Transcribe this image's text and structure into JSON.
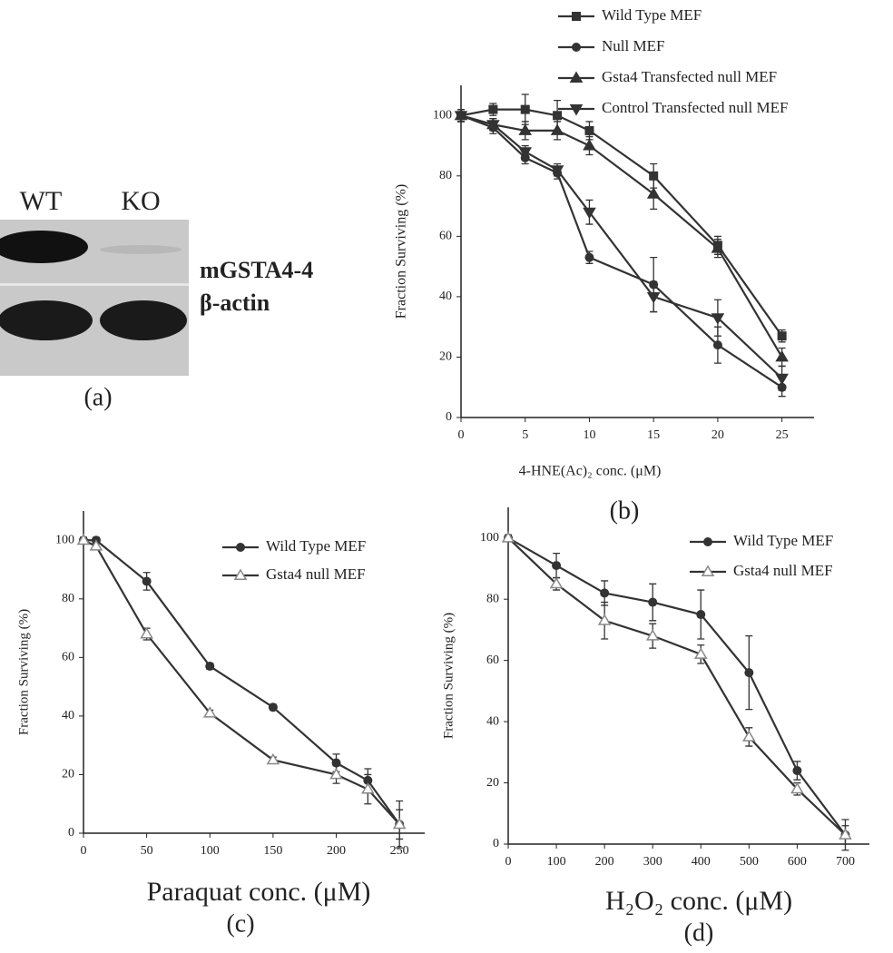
{
  "blot": {
    "lanes": [
      "WT",
      "KO"
    ],
    "bands": [
      "mGSTA4-4",
      "β-actin"
    ],
    "panel": "(a)"
  },
  "chart_data": [
    {
      "type": "line",
      "panel": "(b)",
      "xlabel": "4-HNE(Ac)₂ conc. (μM)",
      "ylabel": "Fraction Surviving (%)",
      "x": [
        0,
        2.5,
        5,
        7.5,
        10,
        15,
        20,
        25
      ],
      "xlim": [
        0,
        27.5
      ],
      "xticks": [
        0,
        5,
        10,
        15,
        20,
        25
      ],
      "ylim": [
        0,
        110
      ],
      "yticks": [
        0,
        20,
        40,
        60,
        80,
        100
      ],
      "series": [
        {
          "name": "Wild Type MEF",
          "color": "#333333",
          "marker": "square",
          "values": [
            100,
            102,
            102,
            100,
            95,
            80,
            57,
            27
          ],
          "errors": [
            2,
            2,
            5,
            5,
            3,
            4,
            3,
            2
          ]
        },
        {
          "name": "Null MEF",
          "color": "#333333",
          "marker": "circle",
          "values": [
            100,
            96,
            86,
            81,
            53,
            44,
            24,
            10
          ],
          "errors": [
            2,
            2,
            2,
            2,
            2,
            9,
            6,
            3
          ]
        },
        {
          "name": "Gsta4 Transfected null MEF",
          "color": "#333333",
          "marker": "triangle",
          "values": [
            100,
            97,
            95,
            95,
            90,
            74,
            56,
            20
          ],
          "errors": [
            2,
            2,
            3,
            3,
            3,
            5,
            3,
            3
          ]
        },
        {
          "name": "Control Transfected null MEF",
          "color": "#333333",
          "marker": "triangle-down",
          "values": [
            100,
            97,
            88,
            82,
            68,
            40,
            33,
            13
          ],
          "errors": [
            2,
            2,
            2,
            2,
            4,
            5,
            6,
            4
          ]
        }
      ]
    },
    {
      "type": "line",
      "panel": "(c)",
      "xlabel": "Paraquat conc. (μM)",
      "ylabel": "Fraction Surviving (%)",
      "x": [
        0,
        10,
        50,
        100,
        150,
        200,
        225,
        250
      ],
      "xlim": [
        0,
        270
      ],
      "xticks": [
        0,
        50,
        100,
        150,
        200,
        250
      ],
      "ylim": [
        0,
        110
      ],
      "yticks": [
        0,
        20,
        40,
        60,
        80,
        100
      ],
      "series": [
        {
          "name": "Wild Type MEF",
          "color": "#333333",
          "marker": "circle",
          "values": [
            100,
            100,
            86,
            57,
            43,
            24,
            18,
            3
          ],
          "errors": [
            1,
            1,
            3,
            1,
            1,
            3,
            4,
            8
          ]
        },
        {
          "name": "Gsta4 null MEF",
          "color": "#333333",
          "marker": "triangle-open",
          "values": [
            100,
            98,
            68,
            41,
            25,
            20,
            15,
            3
          ],
          "errors": [
            1,
            1,
            2,
            1,
            1,
            3,
            5,
            5
          ]
        }
      ]
    },
    {
      "type": "line",
      "panel": "(d)",
      "xlabel": "H₂O₂ conc. (μM)",
      "ylabel": "Fraction Surviving (%)",
      "x": [
        0,
        100,
        200,
        300,
        400,
        500,
        600,
        700
      ],
      "xlim": [
        0,
        750
      ],
      "xticks": [
        0,
        100,
        200,
        300,
        400,
        500,
        600,
        700
      ],
      "ylim": [
        0,
        110
      ],
      "yticks": [
        0,
        20,
        40,
        60,
        80,
        100
      ],
      "series": [
        {
          "name": "Wild Type MEF",
          "color": "#333333",
          "marker": "circle",
          "values": [
            100,
            91,
            82,
            79,
            75,
            56,
            24,
            3
          ],
          "errors": [
            1,
            4,
            4,
            6,
            8,
            12,
            3,
            5
          ]
        },
        {
          "name": "Gsta4 null MEF",
          "color": "#333333",
          "marker": "triangle-open",
          "values": [
            100,
            85,
            73,
            68,
            62,
            35,
            18,
            3
          ],
          "errors": [
            1,
            2,
            6,
            4,
            3,
            3,
            2,
            3
          ]
        }
      ]
    }
  ]
}
